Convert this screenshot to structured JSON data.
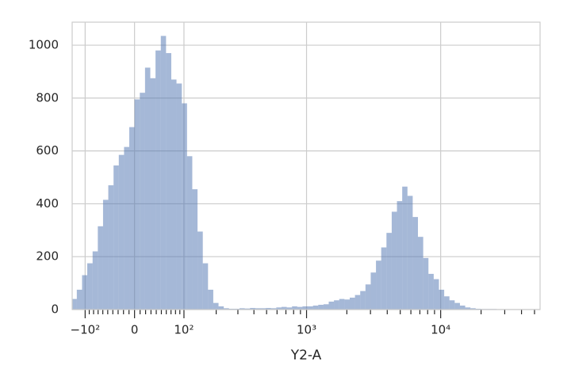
{
  "chart_data": {
    "type": "histogram",
    "xlabel": "Y2-A",
    "xscale": "logicle",
    "color": "#4c72b0",
    "grid": true,
    "xlim": [
      -135,
      55000
    ],
    "ylim": [
      0,
      1087
    ],
    "xticks": [
      {
        "value": -100,
        "label": "−10²"
      },
      0,
      {
        "value": 100,
        "label": "10²"
      },
      {
        "value": 1000,
        "label": "10³"
      },
      {
        "value": 10000,
        "label": "10⁴"
      }
    ],
    "xminorticks": [
      -90,
      -80,
      -70,
      -60,
      -50,
      -40,
      -30,
      -20,
      -10,
      10,
      20,
      30,
      40,
      50,
      60,
      70,
      80,
      90,
      200,
      300,
      400,
      500,
      600,
      700,
      800,
      900,
      2000,
      3000,
      4000,
      5000,
      6000,
      7000,
      8000,
      9000,
      20000,
      30000,
      40000,
      50000
    ],
    "yticks": [
      0,
      200,
      400,
      600,
      800,
      1000
    ],
    "bins": [
      -136.8,
      -121.8,
      -107.8,
      -94.8,
      -82.2,
      -70.6,
      -59.5,
      -48.9,
      -38.6,
      -28.7,
      -19.0,
      -9.5,
      0,
      9.5,
      19.0,
      28.7,
      38.6,
      48.9,
      59.5,
      70.6,
      82.2,
      94.8,
      107.8,
      121.8,
      136.8,
      152.9,
      170.2,
      188.9,
      209.2,
      231.1,
      254.9,
      280.8,
      308.9,
      339.6,
      373.0,
      409.4,
      449.2,
      492.6,
      540,
      592,
      648,
      710,
      778,
      852,
      932,
      1021,
      1117,
      1223,
      1339,
      1465,
      1603,
      1755,
      1920,
      2101,
      2299,
      2516,
      2753,
      3013,
      3297,
      3607,
      3947,
      4319,
      4726,
      5171,
      5658,
      6191,
      6774,
      7412,
      8110,
      8874,
      9710,
      10624,
      11625,
      12720,
      13918,
      15229,
      16663,
      18232,
      19949,
      21828,
      23884,
      26133,
      28594,
      31287,
      34234,
      37458,
      40985,
      44845,
      49069,
      53690
    ],
    "values": [
      40,
      75,
      130,
      175,
      220,
      315,
      415,
      470,
      545,
      585,
      615,
      690,
      795,
      820,
      915,
      875,
      980,
      1035,
      970,
      870,
      855,
      780,
      580,
      455,
      295,
      175,
      75,
      25,
      12,
      5,
      3,
      3,
      5,
      4,
      6,
      5,
      5,
      6,
      5,
      8,
      10,
      8,
      12,
      10,
      12,
      12,
      15,
      18,
      20,
      30,
      35,
      40,
      38,
      45,
      55,
      70,
      95,
      140,
      185,
      235,
      290,
      370,
      410,
      465,
      430,
      350,
      275,
      195,
      135,
      115,
      75,
      50,
      35,
      25,
      15,
      8,
      5,
      3,
      2,
      2,
      2,
      1,
      1,
      1,
      1,
      1,
      1,
      1,
      1
    ]
  }
}
